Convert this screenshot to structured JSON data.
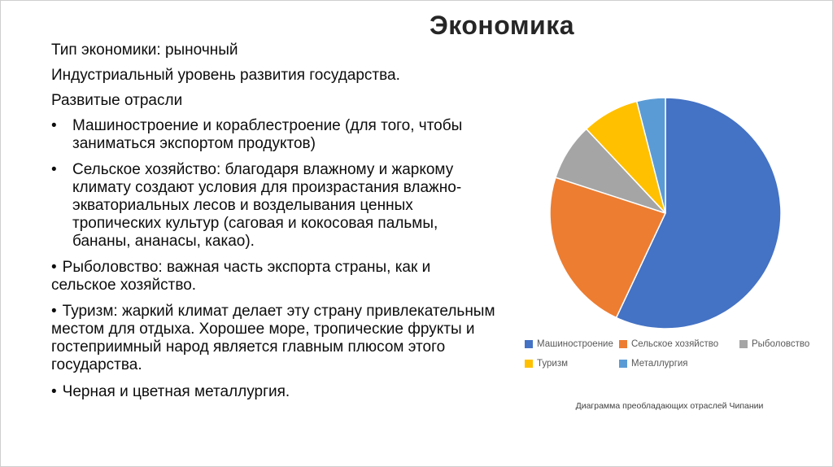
{
  "title": "Экономика",
  "body": {
    "paragraphs": [
      {
        "marker": "",
        "text": "Тип экономики: рыночный"
      },
      {
        "marker": "",
        "text": "Индустриальный уровень развития государства."
      },
      {
        "marker": "",
        "text": "Развитые отрасли"
      },
      {
        "marker": "•",
        "text": " Машиностроение и кораблестроение (для того, чтобы заниматься экспортом продуктов)"
      },
      {
        "marker": "•",
        "text": "Сельское хозяйство: благодаря влажному и жаркому климату создают условия для произрастания влажно-экваториальных лесов и возделывания ценных тропических культур (саговая и кокосовая пальмы, бананы, ананасы, какао)."
      },
      {
        "marker": "•",
        "text": "Рыболовство: важная часть экспорта страны, как и сельское хозяйство."
      },
      {
        "marker": "•",
        "text": "Туризм: жаркий климат делает эту страну привлекательным местом для отдыха. Хорошее море, тропические фрукты и гостеприимный народ является главным плюсом этого государства."
      },
      {
        "marker": "•",
        "text": "Черная и цветная металлургия."
      }
    ]
  },
  "chart_data": {
    "type": "pie",
    "caption": "Диаграмма преобладающих отраслей Чипании",
    "legend_position": "bottom",
    "start_angle_deg": 0,
    "direction": "clockwise",
    "series": [
      {
        "name": "Машиностроение",
        "value": 57,
        "color": "#4472C4"
      },
      {
        "name": "Сельское хозяйство",
        "value": 23,
        "color": "#ED7D31"
      },
      {
        "name": "Рыболовство",
        "value": 8,
        "color": "#A5A5A5"
      },
      {
        "name": "Туризм",
        "value": 8,
        "color": "#FFC000"
      },
      {
        "name": "Металлургия",
        "value": 4,
        "color": "#5B9BD5"
      }
    ]
  }
}
